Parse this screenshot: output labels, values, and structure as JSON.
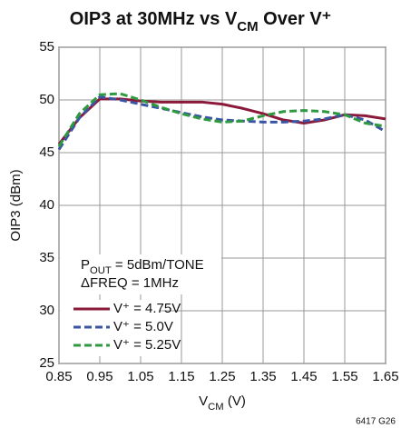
{
  "chart_data": {
    "type": "line",
    "title": [
      {
        "text": "OIP3 at 30MHz vs V"
      },
      {
        "text": "CM",
        "shift": "sub"
      },
      {
        "text": " Over V⁺"
      }
    ],
    "x_label": [
      {
        "text": "V"
      },
      {
        "text": "CM",
        "shift": "sub"
      },
      {
        "text": " (V)"
      }
    ],
    "y_label": "OIP3 (dBm)",
    "annotations": [
      [
        {
          "text": "P"
        },
        {
          "text": "OUT",
          "shift": "sub"
        },
        {
          "text": " = 5dBm/TONE"
        }
      ],
      [
        {
          "text": "ΔFREQ = 1MHz"
        }
      ]
    ],
    "footnote": "6417 G26",
    "x": [
      0.85,
      0.9,
      0.95,
      1.0,
      1.05,
      1.1,
      1.15,
      1.2,
      1.25,
      1.3,
      1.35,
      1.4,
      1.45,
      1.5,
      1.55,
      1.6,
      1.65
    ],
    "series": [
      {
        "name": "V⁺ = 4.75V",
        "color": "#8b1a3a",
        "dash": "solid",
        "values": [
          45.8,
          48.3,
          50.1,
          50.1,
          49.9,
          49.8,
          49.8,
          49.8,
          49.6,
          49.2,
          48.7,
          48.1,
          47.8,
          48.1,
          48.6,
          48.5,
          48.2
        ]
      },
      {
        "name": "V⁺ = 5.0V",
        "color": "#3a55a4",
        "dash": "dashed",
        "values": [
          45.3,
          48.3,
          50.3,
          50.0,
          49.6,
          49.2,
          48.8,
          48.4,
          48.1,
          48.0,
          47.9,
          47.9,
          48.0,
          48.2,
          48.6,
          48.1,
          47.0
        ]
      },
      {
        "name": "V⁺ = 5.25V",
        "color": "#2e9a3f",
        "dash": "dashed",
        "values": [
          45.6,
          48.7,
          50.5,
          50.6,
          50.0,
          49.3,
          48.7,
          48.2,
          47.9,
          48.0,
          48.5,
          48.9,
          49.0,
          48.9,
          48.6,
          47.8,
          47.5
        ]
      }
    ],
    "xlim": [
      0.85,
      1.65
    ],
    "xticks": [
      0.85,
      0.95,
      1.05,
      1.15,
      1.25,
      1.35,
      1.45,
      1.55,
      1.65
    ],
    "ylim": [
      25,
      55
    ],
    "yticks": [
      25,
      30,
      35,
      40,
      45,
      50,
      55
    ],
    "grid": true,
    "legend": "lower left"
  }
}
